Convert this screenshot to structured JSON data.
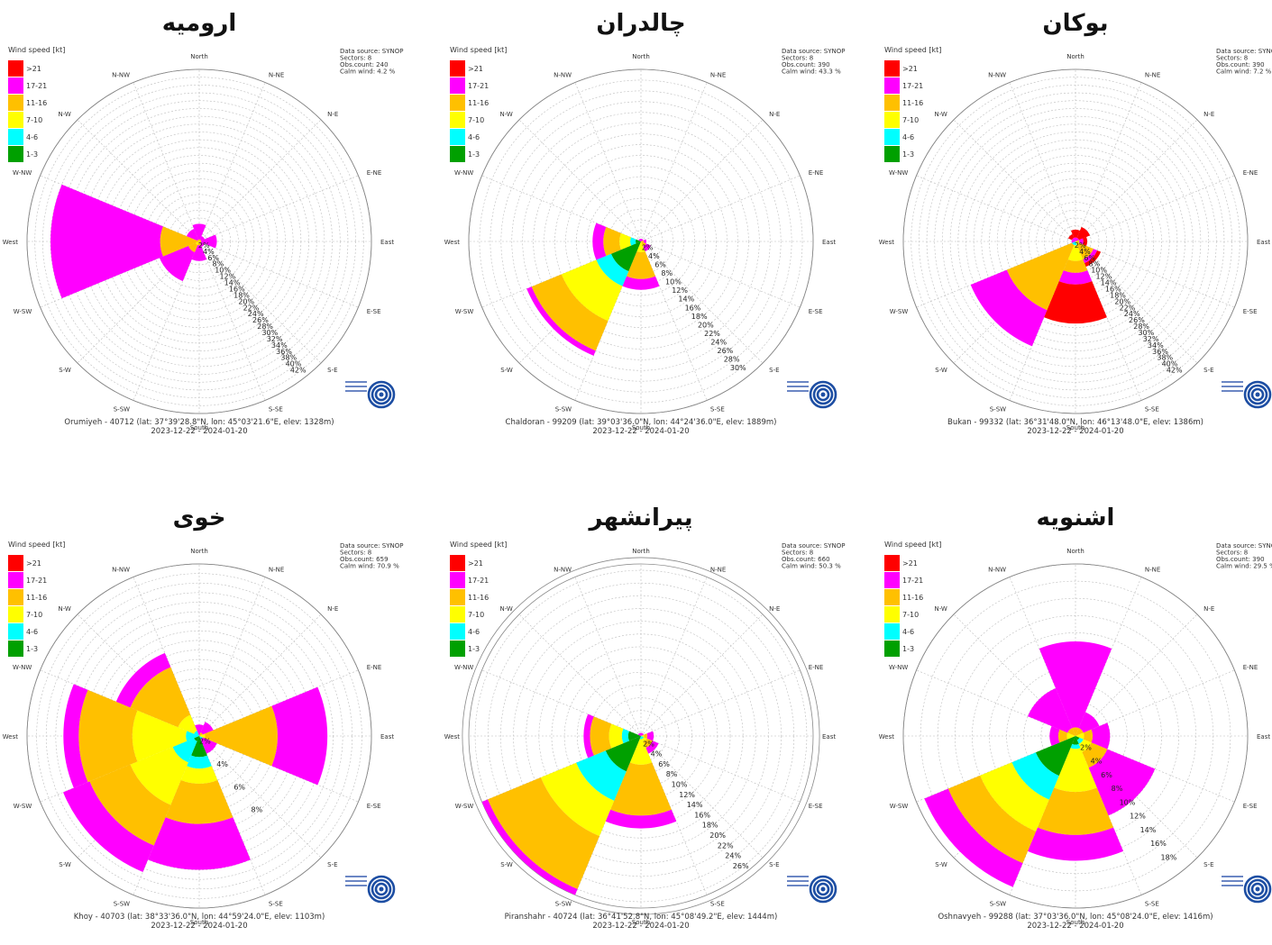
{
  "legend": {
    "title": "Wind speed [kt]",
    "bins": [
      {
        "label": ">21",
        "color": "#ff0000"
      },
      {
        "label": "17-21",
        "color": "#ff00ff"
      },
      {
        "label": "11-16",
        "color": "#ffc000"
      },
      {
        "label": "7-10",
        "color": "#ffff00"
      },
      {
        "label": "4-6",
        "color": "#00ffff"
      },
      {
        "label": "1-3",
        "color": "#00a000"
      }
    ]
  },
  "directions": [
    "North",
    "N-NE",
    "N-E",
    "E-NE",
    "East",
    "E-SE",
    "S-E",
    "S-SE",
    "South",
    "S-SW",
    "S-W",
    "W-SW",
    "West",
    "W-NW",
    "N-W",
    "N-NW"
  ],
  "chart_data": [
    {
      "type": "windrose",
      "title": "ارومیه",
      "info": [
        "Data source: SYNOP",
        "Sectors: 8",
        "Obs.count: 240",
        "Calm wind: 4.2 %"
      ],
      "footer1": "Orumiyeh - 40712 (lat: 37°39'28.8\"N, lon: 45°03'21.6\"E, elev: 1328m)",
      "footer2": "2023-12-22 - 2024-01-20",
      "rmax": 44,
      "ring_step": 2,
      "ring_labels": [
        "2%",
        "4%",
        "6%",
        "8%",
        "10%",
        "12%",
        "14%",
        "16%",
        "18%",
        "20%",
        "22%",
        "24%",
        "26%",
        "28%",
        "30%",
        "32%",
        "34%",
        "36%",
        "38%",
        "40%",
        "42%"
      ],
      "sectors": [
        {
          "dir": "North",
          "values": [
            0,
            4,
            0.5,
            0,
            0,
            0
          ]
        },
        {
          "dir": "N-E",
          "values": [
            0,
            1,
            0.5,
            0,
            0,
            0
          ]
        },
        {
          "dir": "East",
          "values": [
            0,
            4,
            0.5,
            0,
            0,
            0
          ]
        },
        {
          "dir": "S-E",
          "values": [
            0,
            1,
            0.5,
            0,
            0,
            0
          ]
        },
        {
          "dir": "South",
          "values": [
            0,
            4,
            1,
            0,
            0,
            0
          ]
        },
        {
          "dir": "S-W",
          "values": [
            0,
            8,
            2,
            1,
            0,
            0
          ]
        },
        {
          "dir": "West",
          "values": [
            0,
            28,
            10,
            0,
            0,
            0
          ]
        },
        {
          "dir": "N-W",
          "values": [
            0,
            3,
            0.5,
            0,
            0,
            0
          ]
        }
      ]
    },
    {
      "type": "windrose",
      "title": "چالدران",
      "info": [
        "Data source: SYNOP",
        "Sectors: 8",
        "Obs.count: 390",
        "Calm wind: 43.3 %"
      ],
      "footer1": "Chaldoran - 99209 (lat: 39°03'36.0\"N, lon: 44°24'36.0\"E, elev: 1889m)",
      "footer2": "2023-12-22 - 2024-01-20",
      "rmax": 32,
      "ring_step": 2,
      "ring_labels": [
        "2%",
        "4%",
        "6%",
        "8%",
        "10%",
        "12%",
        "14%",
        "16%",
        "18%",
        "20%",
        "22%",
        "24%",
        "26%",
        "28%",
        "30%"
      ],
      "sectors": [
        {
          "dir": "North",
          "values": [
            0,
            0.5,
            0,
            0,
            0,
            0
          ]
        },
        {
          "dir": "N-E",
          "values": [
            0,
            0.5,
            0,
            0,
            0,
            0
          ]
        },
        {
          "dir": "East",
          "values": [
            0,
            0.5,
            0.5,
            0,
            0,
            0
          ]
        },
        {
          "dir": "S-E",
          "values": [
            0,
            1,
            1,
            0,
            0,
            0
          ]
        },
        {
          "dir": "South",
          "values": [
            0,
            2,
            5,
            2,
            0,
            0
          ]
        },
        {
          "dir": "S-W",
          "values": [
            0,
            1,
            6,
            7,
            3,
            6
          ]
        },
        {
          "dir": "West",
          "values": [
            0,
            2,
            3,
            2,
            1,
            1
          ]
        },
        {
          "dir": "N-W",
          "values": [
            0,
            0.5,
            0,
            0,
            0,
            0
          ]
        }
      ]
    },
    {
      "type": "windrose",
      "title": "بوکان",
      "info": [
        "Data source: SYNOP",
        "Sectors: 8",
        "Obs.count: 390",
        "Calm wind: 7.2 %"
      ],
      "footer1": "Bukan - 99332 (lat: 36°31'48.0\"N, lon: 46°13'48.0\"E, elev: 1386m)",
      "footer2": "2023-12-22 - 2024-01-20",
      "rmax": 44,
      "ring_step": 2,
      "ring_labels": [
        "2%",
        "4%",
        "6%",
        "8%",
        "10%",
        "12%",
        "14%",
        "16%",
        "18%",
        "20%",
        "22%",
        "24%",
        "26%",
        "28%",
        "30%",
        "32%",
        "34%",
        "36%",
        "38%",
        "40%",
        "42%"
      ],
      "sectors": [
        {
          "dir": "North",
          "values": [
            2,
            1,
            0,
            0,
            0,
            0
          ]
        },
        {
          "dir": "N-E",
          "values": [
            3,
            1,
            0,
            0,
            0,
            0
          ]
        },
        {
          "dir": "East",
          "values": [
            1,
            1,
            1,
            0,
            0,
            0
          ]
        },
        {
          "dir": "S-E",
          "values": [
            1,
            1,
            4,
            1,
            0,
            0
          ]
        },
        {
          "dir": "South",
          "values": [
            10,
            3,
            3,
            4,
            1,
            0
          ]
        },
        {
          "dir": "S-W",
          "values": [
            0,
            10,
            18,
            0,
            1,
            0
          ]
        },
        {
          "dir": "West",
          "values": [
            0,
            1,
            0,
            0,
            0,
            0
          ]
        },
        {
          "dir": "N-W",
          "values": [
            1,
            1,
            0,
            0,
            0,
            0
          ]
        }
      ]
    },
    {
      "type": "windrose",
      "title": "خوی",
      "info": [
        "Data source: SYNOP",
        "Sectors: 8",
        "Obs.count: 659",
        "Calm wind: 70.9 %"
      ],
      "footer1": "Khoy - 40703 (lat: 38°33'36.0\"N, lon: 44°59'24.0\"E, elev: 1103m)",
      "footer2": "2023-12-22 - 2024-01-20",
      "rmax": 9,
      "ring_step": 0.5,
      "ring_labels": [
        "2%",
        "",
        "",
        "4%",
        "",
        "",
        "6%",
        "",
        "",
        "8%"
      ],
      "sectors": [
        {
          "dir": "North",
          "values": [
            0,
            0.6,
            0,
            0,
            0,
            0
          ]
        },
        {
          "dir": "N-E",
          "values": [
            0,
            0.6,
            0.2,
            0,
            0,
            0
          ]
        },
        {
          "dir": "East",
          "values": [
            0,
            2.6,
            3.8,
            0.3,
            0,
            0
          ]
        },
        {
          "dir": "S-E",
          "values": [
            0,
            0.8,
            0,
            0,
            0.2,
            0
          ]
        },
        {
          "dir": "South",
          "values": [
            0,
            2.4,
            2.1,
            0.8,
            0.6,
            1.1
          ]
        },
        {
          "dir": "S-W",
          "values": [
            0,
            1.5,
            2.3,
            2.4,
            1.2,
            0.3
          ]
        },
        {
          "dir": "West",
          "values": [
            0,
            0.8,
            2.8,
            2.8,
            0.7,
            0
          ]
        },
        {
          "dir": "N-W",
          "values": [
            0,
            0.8,
            2.7,
            0.9,
            0.3,
            0
          ]
        }
      ]
    },
    {
      "type": "windrose",
      "title": "پیرانشهر",
      "info": [
        "Data source: SYNOP",
        "Sectors: 8",
        "Obs.count: 660",
        "Calm wind: 50.3 %"
      ],
      "footer1": "Piranshahr - 40724 (lat: 36°41'52.8\"N, lon: 45°08'49.2\"E, elev: 1444m)",
      "footer2": "2023-12-22 - 2024-01-20",
      "rmax": 27,
      "ring_step": 2,
      "ring_labels": [
        "2%",
        "4%",
        "6%",
        "8%",
        "10%",
        "12%",
        "14%",
        "16%",
        "18%",
        "20%",
        "22%",
        "24%",
        "26%"
      ],
      "sectors": [
        {
          "dir": "North",
          "values": [
            0,
            0.5,
            0,
            0,
            0,
            0
          ]
        },
        {
          "dir": "N-E",
          "values": [
            0,
            0.5,
            0,
            0,
            0,
            0
          ]
        },
        {
          "dir": "East",
          "values": [
            0,
            1,
            0.5,
            0.5,
            0,
            0
          ]
        },
        {
          "dir": "S-E",
          "values": [
            0,
            1,
            1,
            0.5,
            0.5,
            0
          ]
        },
        {
          "dir": "South",
          "values": [
            0,
            2,
            8,
            4,
            0.5,
            0
          ]
        },
        {
          "dir": "S-W",
          "values": [
            0,
            1,
            9,
            6,
            5,
            6
          ]
        },
        {
          "dir": "West",
          "values": [
            0,
            1,
            3,
            2,
            1,
            2
          ]
        },
        {
          "dir": "N-W",
          "values": [
            0,
            0.5,
            0,
            0,
            0,
            0
          ]
        }
      ]
    },
    {
      "type": "windrose",
      "title": "اشنویه",
      "info": [
        "Data source: SYNOP",
        "Sectors: 8",
        "Obs.count: 390",
        "Calm wind: 29.5 %"
      ],
      "footer1": "Oshnavyeh - 99288 (lat: 37°03'36.0\"N, lon: 45°08'24.0\"E, elev: 1416m)",
      "footer2": "2023-12-22 - 2024-01-20",
      "rmax": 20,
      "ring_step": 2,
      "ring_labels": [
        "2%",
        "4%",
        "6%",
        "8%",
        "10%",
        "12%",
        "14%",
        "16%",
        "18%"
      ],
      "sectors": [
        {
          "dir": "North",
          "values": [
            0,
            10,
            1,
            0,
            0,
            0
          ]
        },
        {
          "dir": "N-E",
          "values": [
            0,
            2,
            1,
            0,
            0,
            0
          ]
        },
        {
          "dir": "East",
          "values": [
            0,
            2,
            1,
            1,
            0,
            0
          ]
        },
        {
          "dir": "S-E",
          "values": [
            0,
            6,
            2,
            1,
            0.5,
            0.5
          ]
        },
        {
          "dir": "South",
          "values": [
            0,
            3,
            5,
            5,
            0.5,
            1
          ]
        },
        {
          "dir": "S-W",
          "values": [
            0,
            3,
            4,
            4,
            3,
            5
          ]
        },
        {
          "dir": "West",
          "values": [
            0,
            1,
            1,
            1,
            0,
            0
          ]
        },
        {
          "dir": "N-W",
          "values": [
            0,
            5,
            1,
            0,
            0,
            0
          ]
        }
      ]
    }
  ]
}
